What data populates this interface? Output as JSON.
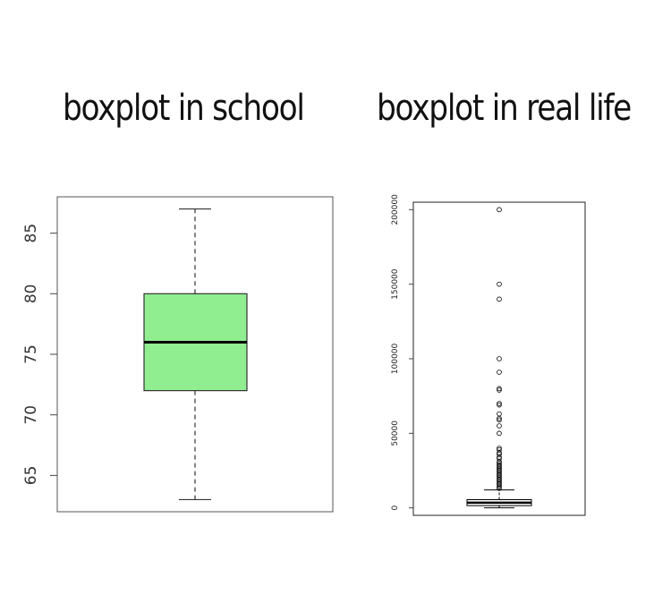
{
  "titles": {
    "left": "boxplot in school",
    "right": "boxplot in real life"
  },
  "chart_data": [
    {
      "type": "boxplot",
      "title": "boxplot in school",
      "ylim": [
        62,
        88
      ],
      "yticks": [
        65,
        70,
        75,
        80,
        85
      ],
      "ytick_labels": [
        "65",
        "70",
        "75",
        "80",
        "85"
      ],
      "box": {
        "min": 63,
        "q1": 72,
        "median": 76,
        "q3": 80,
        "max": 87
      },
      "outliers": [],
      "colors": {
        "fill": "#90EE90",
        "border": "#333333"
      }
    },
    {
      "type": "boxplot",
      "title": "boxplot in real life",
      "ylim": [
        -5000,
        205000
      ],
      "yticks": [
        0,
        50000,
        100000,
        150000,
        200000
      ],
      "ytick_labels": [
        "0",
        "50000",
        "100000",
        "150000",
        "200000"
      ],
      "box": {
        "min": 0,
        "q1": 1500,
        "median": 3500,
        "q3": 5500,
        "max": 12000
      },
      "outliers": [
        200000,
        150000,
        140000,
        100000,
        91000,
        80000,
        79000,
        70000,
        69000,
        63000,
        60000,
        59000,
        55000,
        50000,
        40000,
        39000,
        37000,
        36000,
        34000,
        33000,
        31000,
        30000,
        29000,
        28000,
        27000,
        26000,
        25000,
        24000,
        23000,
        22000,
        21000,
        20000,
        19000,
        18000,
        17000,
        16000,
        15000,
        14000,
        13000
      ],
      "colors": {
        "fill": "#ffffff",
        "border": "#000000"
      }
    }
  ]
}
